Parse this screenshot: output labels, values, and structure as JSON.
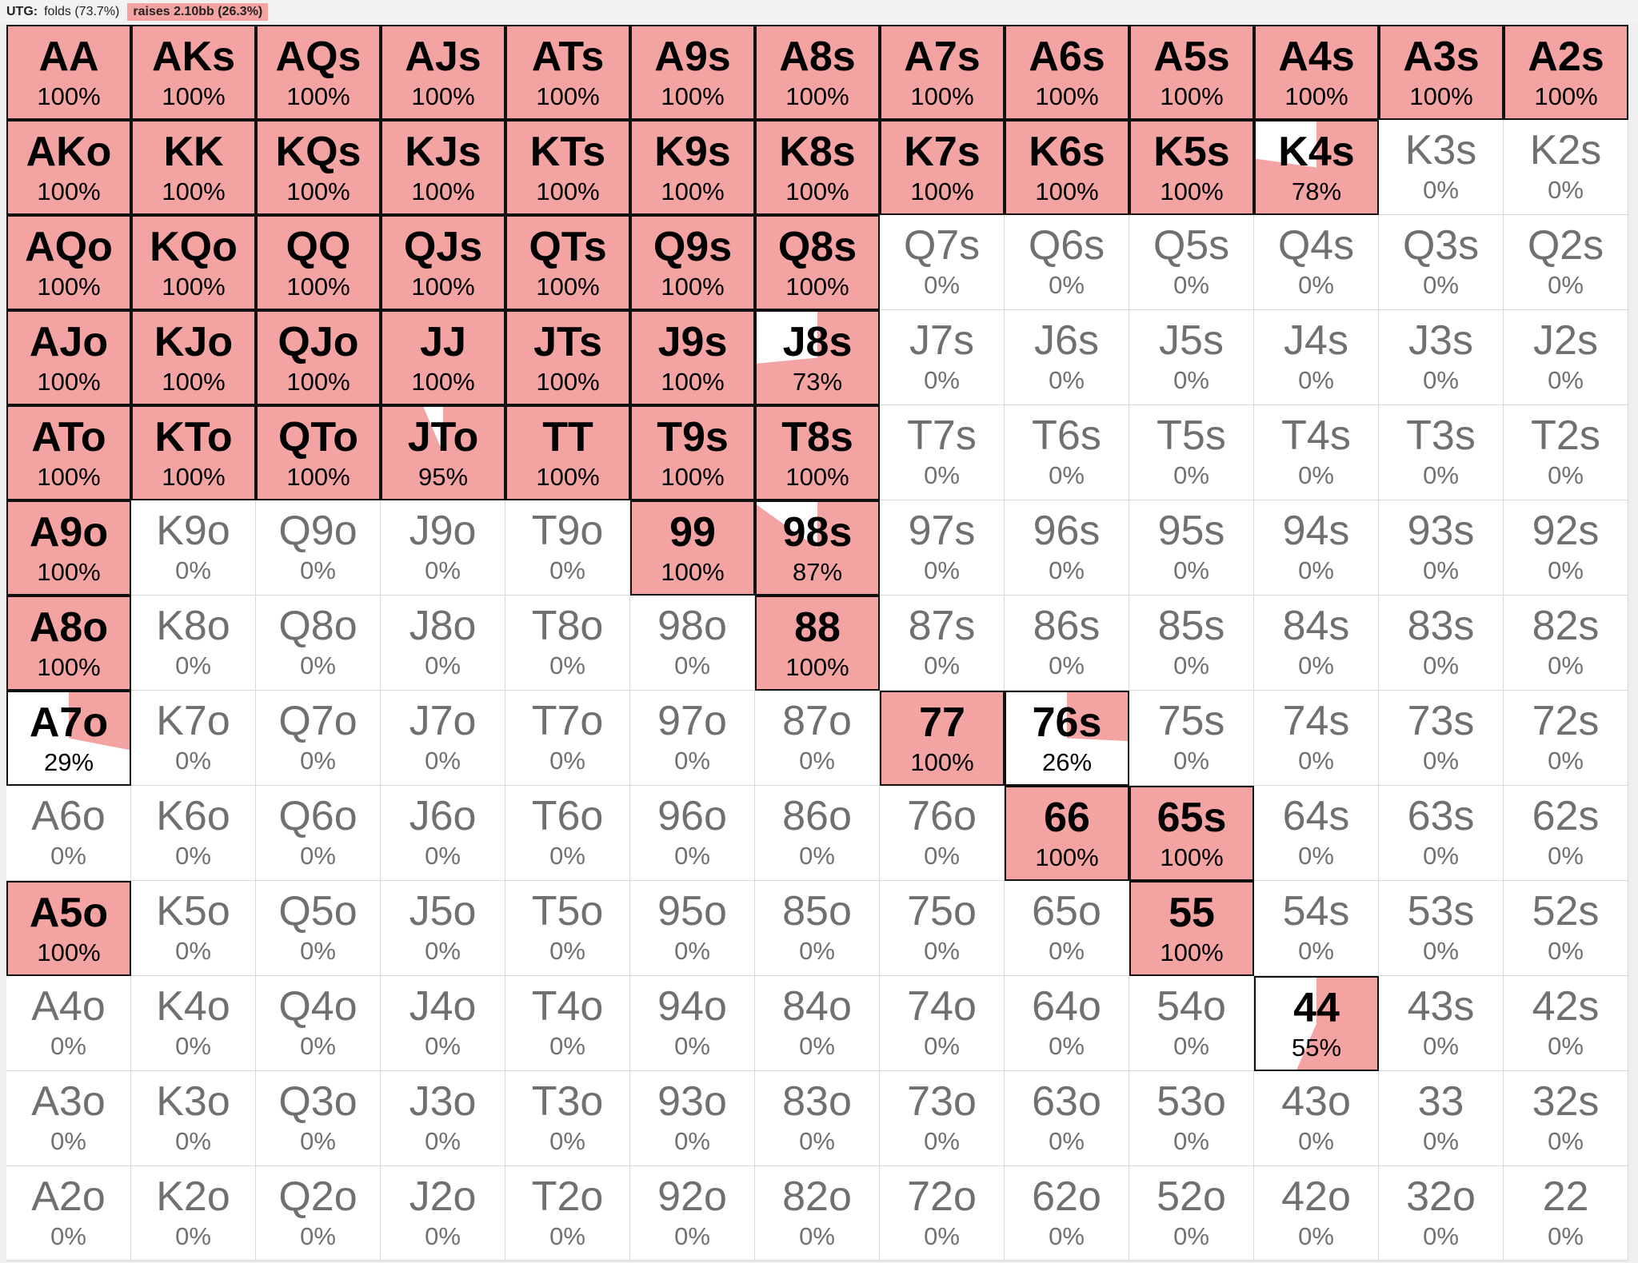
{
  "header": {
    "position": "UTG:",
    "folds": "folds (73.7%)",
    "raises": "raises 2.10bb (26.3%)"
  },
  "colors": {
    "raise": "#f4a3a3",
    "fold": "#ffffff",
    "active_border": "#111111",
    "inactive_text": "#707070"
  },
  "grid": {
    "rows": [
      [
        {
          "hand": "AA",
          "pct": 100
        },
        {
          "hand": "AKs",
          "pct": 100
        },
        {
          "hand": "AQs",
          "pct": 100
        },
        {
          "hand": "AJs",
          "pct": 100
        },
        {
          "hand": "ATs",
          "pct": 100
        },
        {
          "hand": "A9s",
          "pct": 100
        },
        {
          "hand": "A8s",
          "pct": 100
        },
        {
          "hand": "A7s",
          "pct": 100
        },
        {
          "hand": "A6s",
          "pct": 100
        },
        {
          "hand": "A5s",
          "pct": 100
        },
        {
          "hand": "A4s",
          "pct": 100
        },
        {
          "hand": "A3s",
          "pct": 100
        },
        {
          "hand": "A2s",
          "pct": 100
        }
      ],
      [
        {
          "hand": "AKo",
          "pct": 100
        },
        {
          "hand": "KK",
          "pct": 100
        },
        {
          "hand": "KQs",
          "pct": 100
        },
        {
          "hand": "KJs",
          "pct": 100
        },
        {
          "hand": "KTs",
          "pct": 100
        },
        {
          "hand": "K9s",
          "pct": 100
        },
        {
          "hand": "K8s",
          "pct": 100
        },
        {
          "hand": "K7s",
          "pct": 100
        },
        {
          "hand": "K6s",
          "pct": 100
        },
        {
          "hand": "K5s",
          "pct": 100
        },
        {
          "hand": "K4s",
          "pct": 78
        },
        {
          "hand": "K3s",
          "pct": 0
        },
        {
          "hand": "K2s",
          "pct": 0
        }
      ],
      [
        {
          "hand": "AQo",
          "pct": 100
        },
        {
          "hand": "KQo",
          "pct": 100
        },
        {
          "hand": "QQ",
          "pct": 100
        },
        {
          "hand": "QJs",
          "pct": 100
        },
        {
          "hand": "QTs",
          "pct": 100
        },
        {
          "hand": "Q9s",
          "pct": 100
        },
        {
          "hand": "Q8s",
          "pct": 100
        },
        {
          "hand": "Q7s",
          "pct": 0
        },
        {
          "hand": "Q6s",
          "pct": 0
        },
        {
          "hand": "Q5s",
          "pct": 0
        },
        {
          "hand": "Q4s",
          "pct": 0
        },
        {
          "hand": "Q3s",
          "pct": 0
        },
        {
          "hand": "Q2s",
          "pct": 0
        }
      ],
      [
        {
          "hand": "AJo",
          "pct": 100
        },
        {
          "hand": "KJo",
          "pct": 100
        },
        {
          "hand": "QJo",
          "pct": 100
        },
        {
          "hand": "JJ",
          "pct": 100
        },
        {
          "hand": "JTs",
          "pct": 100
        },
        {
          "hand": "J9s",
          "pct": 100
        },
        {
          "hand": "J8s",
          "pct": 73
        },
        {
          "hand": "J7s",
          "pct": 0
        },
        {
          "hand": "J6s",
          "pct": 0
        },
        {
          "hand": "J5s",
          "pct": 0
        },
        {
          "hand": "J4s",
          "pct": 0
        },
        {
          "hand": "J3s",
          "pct": 0
        },
        {
          "hand": "J2s",
          "pct": 0
        }
      ],
      [
        {
          "hand": "ATo",
          "pct": 100
        },
        {
          "hand": "KTo",
          "pct": 100
        },
        {
          "hand": "QTo",
          "pct": 100
        },
        {
          "hand": "JTo",
          "pct": 95
        },
        {
          "hand": "TT",
          "pct": 100
        },
        {
          "hand": "T9s",
          "pct": 100
        },
        {
          "hand": "T8s",
          "pct": 100
        },
        {
          "hand": "T7s",
          "pct": 0
        },
        {
          "hand": "T6s",
          "pct": 0
        },
        {
          "hand": "T5s",
          "pct": 0
        },
        {
          "hand": "T4s",
          "pct": 0
        },
        {
          "hand": "T3s",
          "pct": 0
        },
        {
          "hand": "T2s",
          "pct": 0
        }
      ],
      [
        {
          "hand": "A9o",
          "pct": 100
        },
        {
          "hand": "K9o",
          "pct": 0
        },
        {
          "hand": "Q9o",
          "pct": 0
        },
        {
          "hand": "J9o",
          "pct": 0
        },
        {
          "hand": "T9o",
          "pct": 0
        },
        {
          "hand": "99",
          "pct": 100
        },
        {
          "hand": "98s",
          "pct": 87
        },
        {
          "hand": "97s",
          "pct": 0
        },
        {
          "hand": "96s",
          "pct": 0
        },
        {
          "hand": "95s",
          "pct": 0
        },
        {
          "hand": "94s",
          "pct": 0
        },
        {
          "hand": "93s",
          "pct": 0
        },
        {
          "hand": "92s",
          "pct": 0
        }
      ],
      [
        {
          "hand": "A8o",
          "pct": 100
        },
        {
          "hand": "K8o",
          "pct": 0
        },
        {
          "hand": "Q8o",
          "pct": 0
        },
        {
          "hand": "J8o",
          "pct": 0
        },
        {
          "hand": "T8o",
          "pct": 0
        },
        {
          "hand": "98o",
          "pct": 0
        },
        {
          "hand": "88",
          "pct": 100
        },
        {
          "hand": "87s",
          "pct": 0
        },
        {
          "hand": "86s",
          "pct": 0
        },
        {
          "hand": "85s",
          "pct": 0
        },
        {
          "hand": "84s",
          "pct": 0
        },
        {
          "hand": "83s",
          "pct": 0
        },
        {
          "hand": "82s",
          "pct": 0
        }
      ],
      [
        {
          "hand": "A7o",
          "pct": 29
        },
        {
          "hand": "K7o",
          "pct": 0
        },
        {
          "hand": "Q7o",
          "pct": 0
        },
        {
          "hand": "J7o",
          "pct": 0
        },
        {
          "hand": "T7o",
          "pct": 0
        },
        {
          "hand": "97o",
          "pct": 0
        },
        {
          "hand": "87o",
          "pct": 0
        },
        {
          "hand": "77",
          "pct": 100
        },
        {
          "hand": "76s",
          "pct": 26
        },
        {
          "hand": "75s",
          "pct": 0
        },
        {
          "hand": "74s",
          "pct": 0
        },
        {
          "hand": "73s",
          "pct": 0
        },
        {
          "hand": "72s",
          "pct": 0
        }
      ],
      [
        {
          "hand": "A6o",
          "pct": 0
        },
        {
          "hand": "K6o",
          "pct": 0
        },
        {
          "hand": "Q6o",
          "pct": 0
        },
        {
          "hand": "J6o",
          "pct": 0
        },
        {
          "hand": "T6o",
          "pct": 0
        },
        {
          "hand": "96o",
          "pct": 0
        },
        {
          "hand": "86o",
          "pct": 0
        },
        {
          "hand": "76o",
          "pct": 0
        },
        {
          "hand": "66",
          "pct": 100
        },
        {
          "hand": "65s",
          "pct": 100
        },
        {
          "hand": "64s",
          "pct": 0
        },
        {
          "hand": "63s",
          "pct": 0
        },
        {
          "hand": "62s",
          "pct": 0
        }
      ],
      [
        {
          "hand": "A5o",
          "pct": 100
        },
        {
          "hand": "K5o",
          "pct": 0
        },
        {
          "hand": "Q5o",
          "pct": 0
        },
        {
          "hand": "J5o",
          "pct": 0
        },
        {
          "hand": "T5o",
          "pct": 0
        },
        {
          "hand": "95o",
          "pct": 0
        },
        {
          "hand": "85o",
          "pct": 0
        },
        {
          "hand": "75o",
          "pct": 0
        },
        {
          "hand": "65o",
          "pct": 0
        },
        {
          "hand": "55",
          "pct": 100
        },
        {
          "hand": "54s",
          "pct": 0
        },
        {
          "hand": "53s",
          "pct": 0
        },
        {
          "hand": "52s",
          "pct": 0
        }
      ],
      [
        {
          "hand": "A4o",
          "pct": 0
        },
        {
          "hand": "K4o",
          "pct": 0
        },
        {
          "hand": "Q4o",
          "pct": 0
        },
        {
          "hand": "J4o",
          "pct": 0
        },
        {
          "hand": "T4o",
          "pct": 0
        },
        {
          "hand": "94o",
          "pct": 0
        },
        {
          "hand": "84o",
          "pct": 0
        },
        {
          "hand": "74o",
          "pct": 0
        },
        {
          "hand": "64o",
          "pct": 0
        },
        {
          "hand": "54o",
          "pct": 0
        },
        {
          "hand": "44",
          "pct": 55
        },
        {
          "hand": "43s",
          "pct": 0
        },
        {
          "hand": "42s",
          "pct": 0
        }
      ],
      [
        {
          "hand": "A3o",
          "pct": 0
        },
        {
          "hand": "K3o",
          "pct": 0
        },
        {
          "hand": "Q3o",
          "pct": 0
        },
        {
          "hand": "J3o",
          "pct": 0
        },
        {
          "hand": "T3o",
          "pct": 0
        },
        {
          "hand": "93o",
          "pct": 0
        },
        {
          "hand": "83o",
          "pct": 0
        },
        {
          "hand": "73o",
          "pct": 0
        },
        {
          "hand": "63o",
          "pct": 0
        },
        {
          "hand": "53o",
          "pct": 0
        },
        {
          "hand": "43o",
          "pct": 0
        },
        {
          "hand": "33",
          "pct": 0
        },
        {
          "hand": "32s",
          "pct": 0
        }
      ],
      [
        {
          "hand": "A2o",
          "pct": 0
        },
        {
          "hand": "K2o",
          "pct": 0
        },
        {
          "hand": "Q2o",
          "pct": 0
        },
        {
          "hand": "J2o",
          "pct": 0
        },
        {
          "hand": "T2o",
          "pct": 0
        },
        {
          "hand": "92o",
          "pct": 0
        },
        {
          "hand": "82o",
          "pct": 0
        },
        {
          "hand": "72o",
          "pct": 0
        },
        {
          "hand": "62o",
          "pct": 0
        },
        {
          "hand": "52o",
          "pct": 0
        },
        {
          "hand": "42o",
          "pct": 0
        },
        {
          "hand": "32o",
          "pct": 0
        },
        {
          "hand": "22",
          "pct": 0
        }
      ]
    ]
  }
}
